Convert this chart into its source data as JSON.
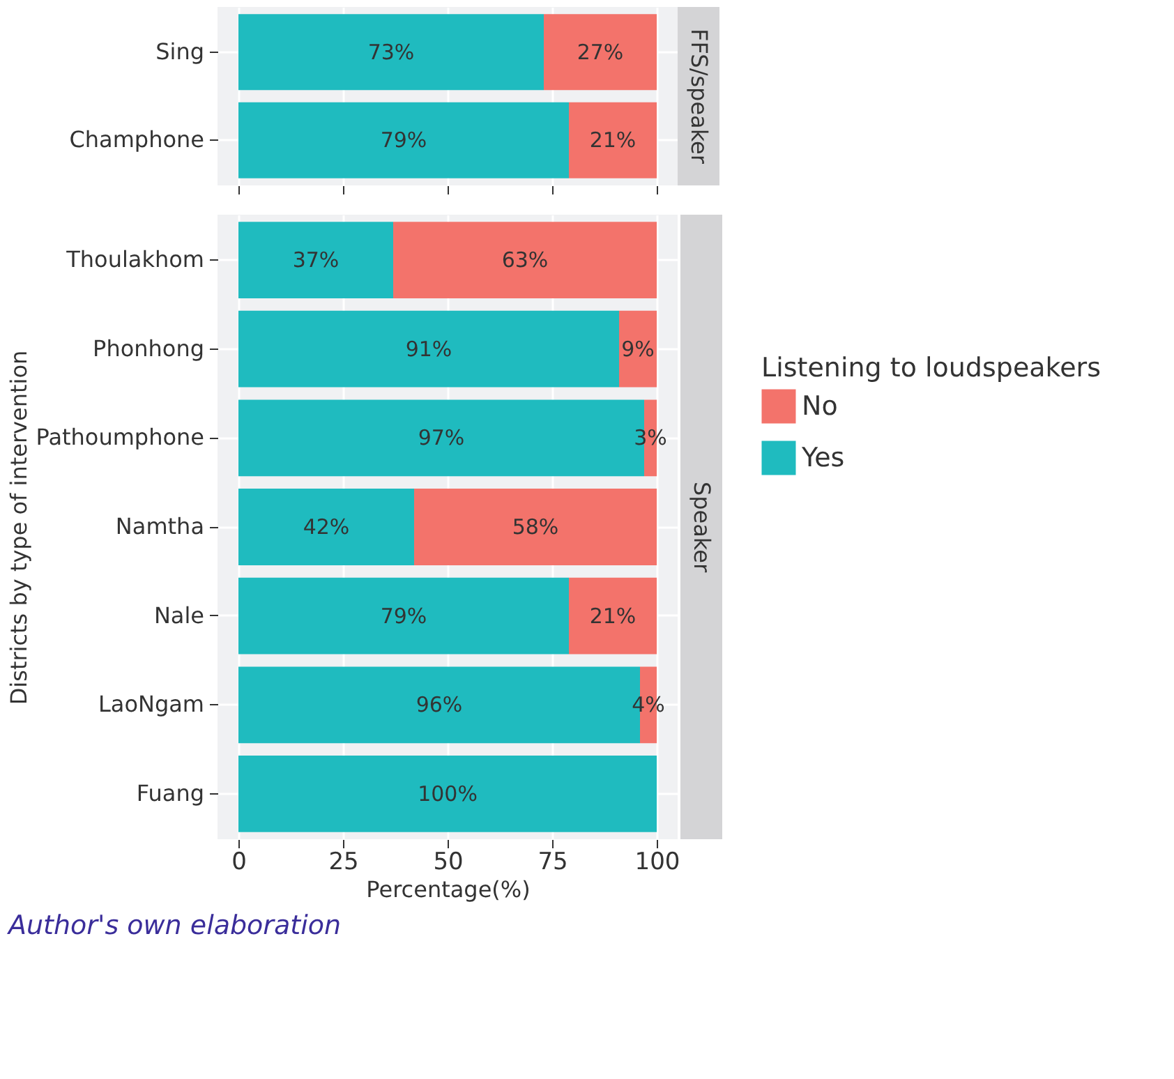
{
  "chart_data": [
    {
      "type": "bar",
      "orientation": "horizontal",
      "stacked": true,
      "title": "FFS/speaker",
      "legend": "right",
      "categories": [
        "Sing",
        "Champhone"
      ],
      "series": [
        {
          "name": "Yes",
          "color": "#1fbbbf",
          "values": [
            73,
            79
          ],
          "value_labels": [
            "73%",
            "79%"
          ]
        },
        {
          "name": "No",
          "color": "#f3736b",
          "values": [
            27,
            21
          ],
          "value_labels": [
            "27%",
            "21%"
          ]
        }
      ],
      "xlim": [
        -5,
        105
      ],
      "xticks": [
        0,
        25,
        50,
        75,
        100
      ],
      "grid": true,
      "tick_labels": "y"
    },
    {
      "type": "bar",
      "orientation": "horizontal",
      "stacked": true,
      "title": "Speaker",
      "xlabel": "Percentage(%)",
      "ylabel": "Districts by type of intervention",
      "legend_title": "Listening to loudspeakers",
      "legend": "right",
      "categories": [
        "Thoulakhom",
        "Phonhong",
        "Pathoumphone",
        "Namtha",
        "Nale",
        "LaoNgam",
        "Fuang"
      ],
      "series": [
        {
          "name": "Yes",
          "color": "#1fbbbf",
          "values": [
            37,
            91,
            97,
            42,
            79,
            96,
            100
          ],
          "value_labels": [
            "37%",
            "91%",
            "97%",
            "42%",
            "79%",
            "96%",
            "100%"
          ]
        },
        {
          "name": "No",
          "color": "#f3736b",
          "values": [
            63,
            9,
            3,
            58,
            21,
            4,
            0
          ],
          "value_labels": [
            "63%",
            "9%",
            "3%",
            "58%",
            "21%",
            "4%",
            null
          ]
        }
      ],
      "xlim": [
        -5,
        105
      ],
      "xticks": [
        0,
        25,
        50,
        75,
        100
      ],
      "grid": true,
      "annotations": [
        "Author's own elaboration"
      ]
    }
  ]
}
